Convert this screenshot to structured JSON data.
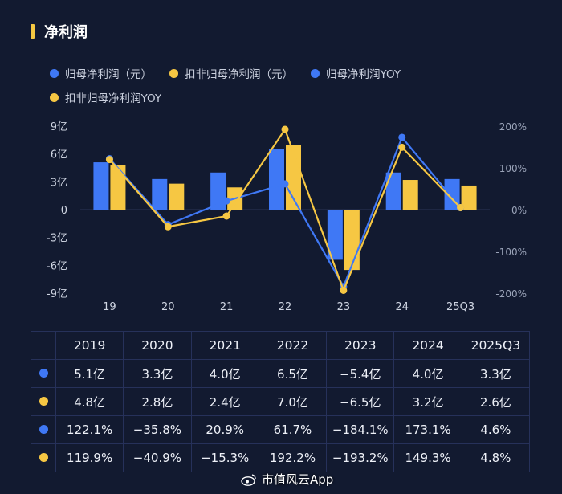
{
  "header": {
    "title": "净利润"
  },
  "colors": {
    "blue": "#3f78f5",
    "yellow": "#f6c743",
    "accent": "#f5c842"
  },
  "legend": [
    {
      "label": "归母净利润（元）",
      "color": "blue"
    },
    {
      "label": "扣非归母净利润（元）",
      "color": "yellow"
    },
    {
      "label": "归母净利润YOY",
      "color": "blue"
    },
    {
      "label": "扣非归母净利润YOY",
      "color": "yellow"
    }
  ],
  "chart_data": {
    "type": "bar",
    "categories": [
      "19",
      "20",
      "21",
      "22",
      "23",
      "24",
      "25Q3"
    ],
    "series": [
      {
        "name": "归母净利润（元）",
        "kind": "bar",
        "axis": "left",
        "color": "blue",
        "values": [
          5.1,
          3.3,
          4.0,
          6.5,
          -5.4,
          4.0,
          3.3
        ]
      },
      {
        "name": "扣非归母净利润（元）",
        "kind": "bar",
        "axis": "left",
        "color": "yellow",
        "values": [
          4.8,
          2.8,
          2.4,
          7.0,
          -6.5,
          3.2,
          2.6
        ]
      },
      {
        "name": "归母净利润YOY",
        "kind": "line",
        "axis": "right",
        "color": "blue",
        "values": [
          122.1,
          -35.8,
          20.9,
          61.7,
          -184.1,
          173.1,
          4.6
        ]
      },
      {
        "name": "扣非归母净利润YOY",
        "kind": "line",
        "axis": "right",
        "color": "yellow",
        "values": [
          119.9,
          -40.9,
          -15.3,
          192.2,
          -193.2,
          149.3,
          4.8
        ]
      }
    ],
    "y_left": {
      "ylim": [
        -9,
        9
      ],
      "ticks": [
        "9亿",
        "6亿",
        "3亿",
        "0",
        "-3亿",
        "-6亿",
        "-9亿"
      ]
    },
    "y_right": {
      "ylim": [
        -200,
        200
      ],
      "ticks": [
        "200%",
        "100%",
        "0%",
        "-100%",
        "-200%"
      ]
    }
  },
  "table": {
    "headers": [
      "2019",
      "2020",
      "2021",
      "2022",
      "2023",
      "2024",
      "2025Q3"
    ],
    "rows": [
      {
        "color": "blue",
        "values": [
          "5.1亿",
          "3.3亿",
          "4.0亿",
          "6.5亿",
          "−5.4亿",
          "4.0亿",
          "3.3亿"
        ]
      },
      {
        "color": "yellow",
        "values": [
          "4.8亿",
          "2.8亿",
          "2.4亿",
          "7.0亿",
          "−6.5亿",
          "3.2亿",
          "2.6亿"
        ]
      },
      {
        "color": "blue",
        "values": [
          "122.1%",
          "−35.8%",
          "20.9%",
          "61.7%",
          "−184.1%",
          "173.1%",
          "4.6%"
        ]
      },
      {
        "color": "yellow",
        "values": [
          "119.9%",
          "−40.9%",
          "−15.3%",
          "192.2%",
          "−193.2%",
          "149.3%",
          "4.8%"
        ]
      }
    ]
  },
  "watermark": {
    "text": "市值风云App"
  }
}
